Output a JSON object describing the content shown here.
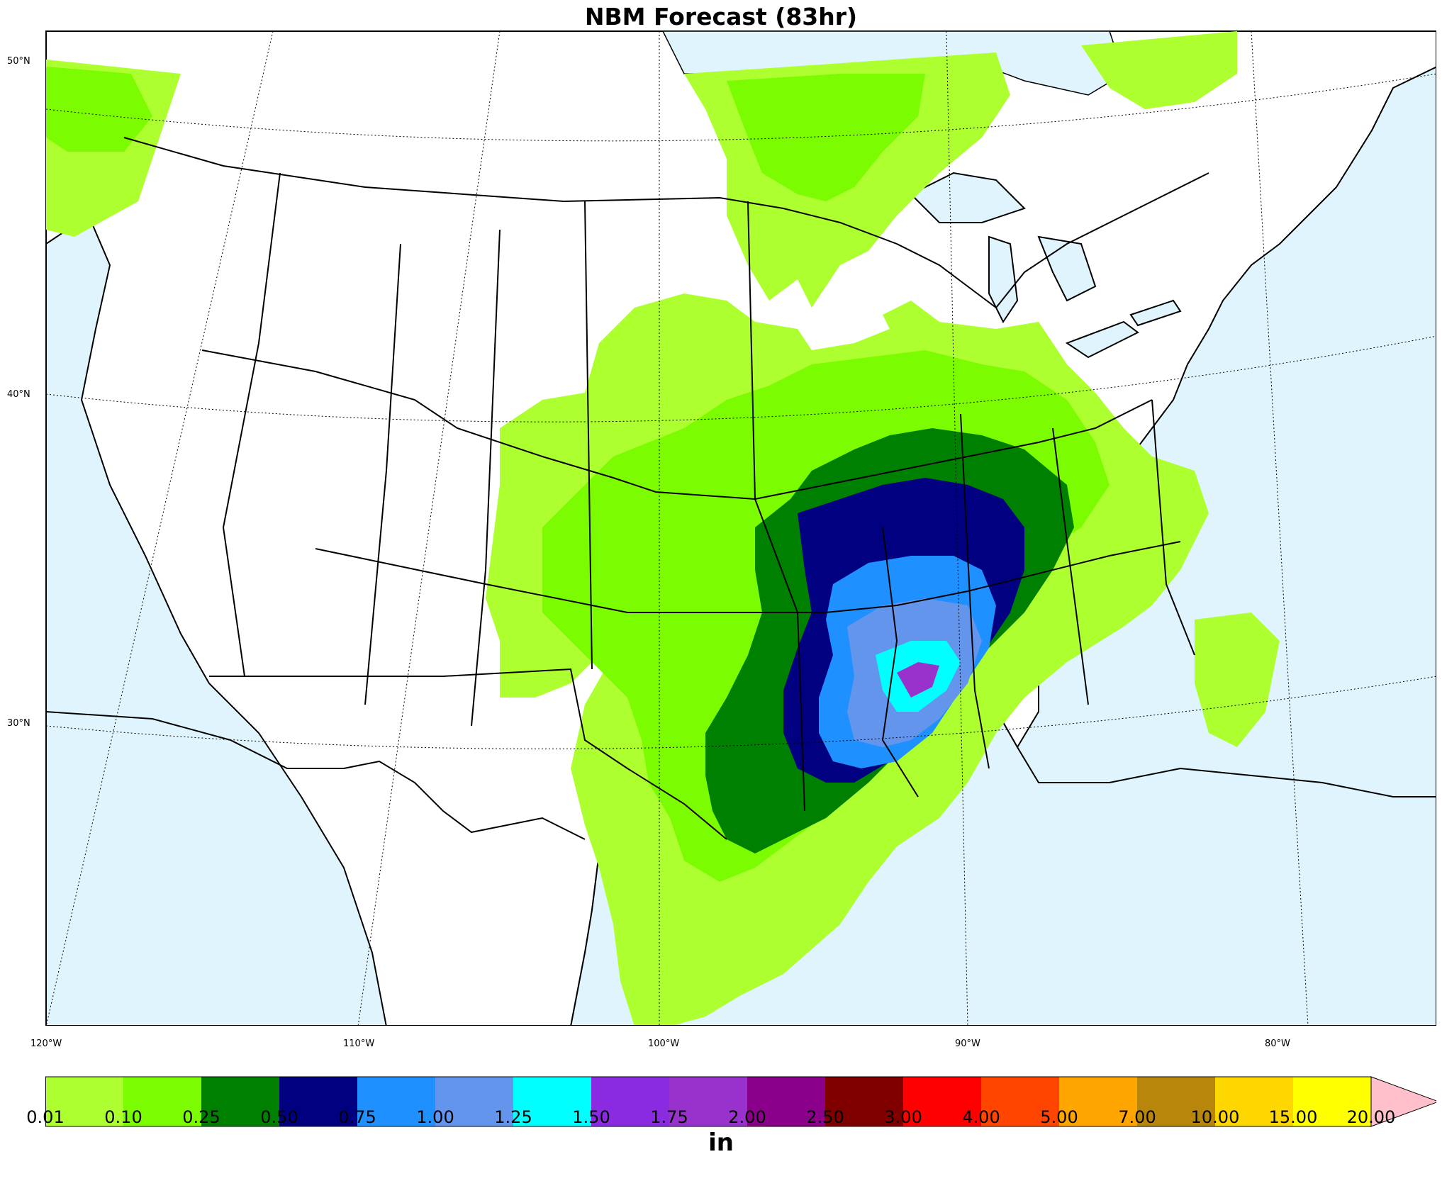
{
  "title": "NBM Forecast (83hr)",
  "units": "in",
  "lat_labels": [
    "50°N",
    "40°N",
    "30°N"
  ],
  "lon_labels": [
    "120°W",
    "110°W",
    "100°W",
    "90°W",
    "80°W"
  ],
  "legend": {
    "ticks": [
      "0.01",
      "0.10",
      "0.25",
      "0.50",
      "0.75",
      "1.00",
      "1.25",
      "1.50",
      "1.75",
      "2.00",
      "2.50",
      "3.00",
      "4.00",
      "5.00",
      "7.00",
      "10.00",
      "15.00",
      "20.00"
    ],
    "colors": [
      "#adff2f",
      "#7cfc00",
      "#008000",
      "#000080",
      "#1e90ff",
      "#6495ed",
      "#00ffff",
      "#8a2be2",
      "#9932cc",
      "#8b008b",
      "#800000",
      "#ff0000",
      "#ff4500",
      "#ffa500",
      "#b8860b",
      "#ffd700",
      "#ffff00"
    ],
    "extend_color": "#ffc0cb"
  },
  "colors": {
    "ocean": "#dff4fc",
    "land": "#ffffff"
  }
}
